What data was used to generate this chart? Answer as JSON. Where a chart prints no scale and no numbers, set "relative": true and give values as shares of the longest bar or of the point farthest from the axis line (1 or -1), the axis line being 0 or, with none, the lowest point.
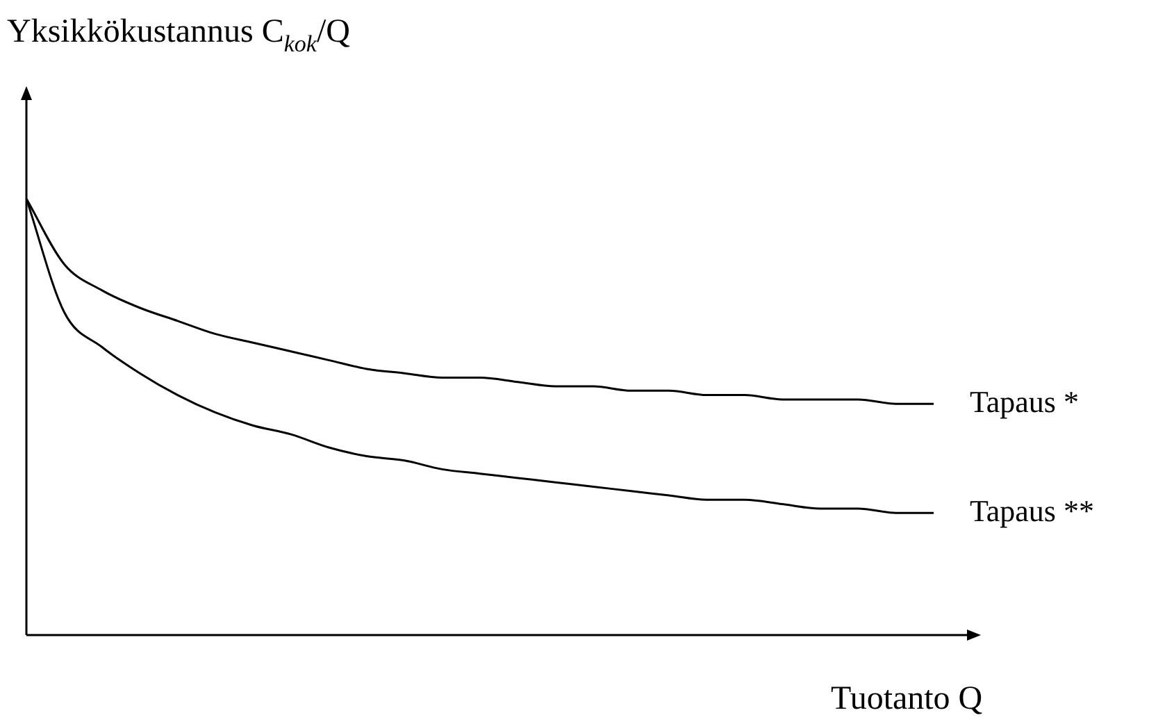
{
  "chart_data": {
    "type": "line",
    "ylabel": "Yksikkökustannus C$_{kok}$/Q",
    "xlabel": "Tuotanto Q",
    "relative": true,
    "marker": "none",
    "grid": false,
    "legend": false,
    "tick_labels": false,
    "categories": [
      null,
      null,
      null,
      null,
      null,
      null,
      null,
      null,
      null,
      null,
      null,
      null,
      null,
      null,
      null,
      null,
      null,
      null,
      null,
      null,
      null,
      null,
      null,
      null,
      null
    ],
    "series": [
      {
        "name": "Tapaus *",
        "color": "#000000",
        "values": [
          1.0,
          0.85,
          0.79,
          0.75,
          0.72,
          0.69,
          0.67,
          0.65,
          0.63,
          0.61,
          0.6,
          0.59,
          0.59,
          0.58,
          0.57,
          0.57,
          0.56,
          0.56,
          0.55,
          0.55,
          0.54,
          0.54,
          0.54,
          0.53,
          0.53
        ]
      },
      {
        "name": "Tapaus **",
        "color": "#000000",
        "values": [
          1.0,
          0.74,
          0.66,
          0.6,
          0.55,
          0.51,
          0.48,
          0.46,
          0.43,
          0.41,
          0.4,
          0.38,
          0.37,
          0.36,
          0.35,
          0.34,
          0.33,
          0.32,
          0.31,
          0.31,
          0.3,
          0.29,
          0.29,
          0.28,
          0.28
        ]
      }
    ]
  }
}
